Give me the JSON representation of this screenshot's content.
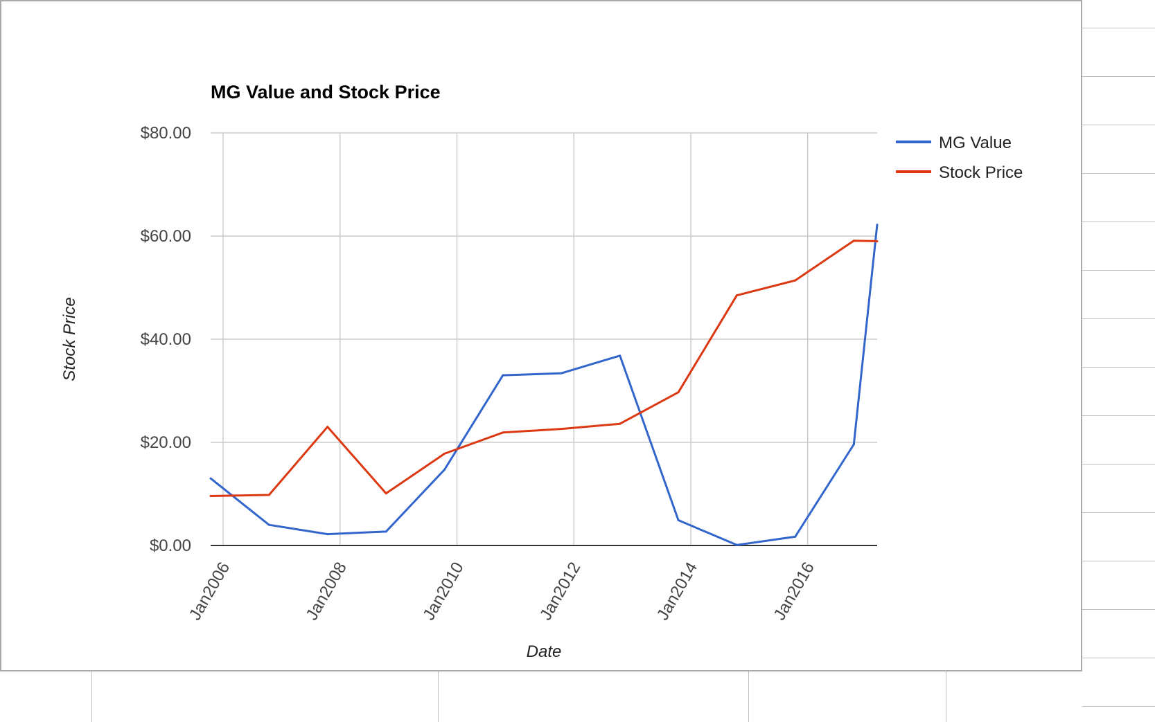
{
  "chart_data": {
    "type": "line",
    "title": "MG Value and Stock Price",
    "xlabel": "Date",
    "ylabel": "Stock Price",
    "ylim": [
      0,
      80
    ],
    "y_ticks": [
      "$0.00",
      "$20.00",
      "$40.00",
      "$60.00",
      "$80.00"
    ],
    "x_ticks": [
      "Jan2006",
      "Jan2008",
      "Jan2010",
      "Jan2012",
      "Jan2014",
      "Jan2016"
    ],
    "xlim": [
      "2005-10-15",
      "2017-03-10"
    ],
    "grid": true,
    "legend_position": "right",
    "x": [
      "2005-10-15",
      "2006-10-15",
      "2007-10-15",
      "2008-10-15",
      "2009-10-15",
      "2010-10-15",
      "2011-10-15",
      "2012-10-15",
      "2013-10-15",
      "2014-10-15",
      "2015-10-15",
      "2016-10-15",
      "2017-03-10"
    ],
    "series": [
      {
        "name": "MG Value",
        "color": "#3366cc",
        "values": [
          13.0,
          4.0,
          2.2,
          2.7,
          14.7,
          33.0,
          33.4,
          36.8,
          4.9,
          0.1,
          1.7,
          19.6,
          62.2
        ]
      },
      {
        "name": "Stock Price",
        "color": "#dc3912",
        "values": [
          9.6,
          9.8,
          23.0,
          10.1,
          17.8,
          21.9,
          22.6,
          23.6,
          29.7,
          48.5,
          51.4,
          59.1,
          59.0
        ]
      }
    ]
  }
}
